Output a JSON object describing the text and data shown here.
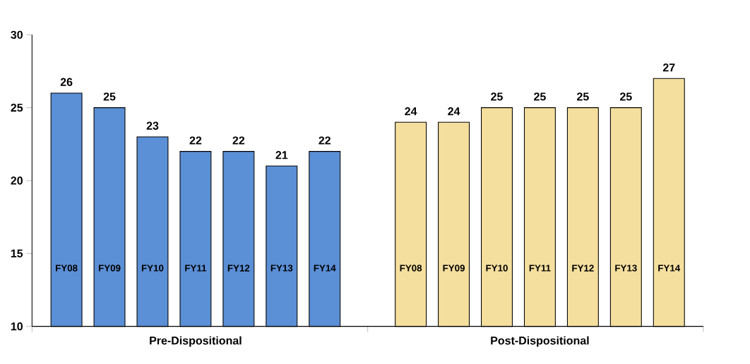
{
  "chart_data": {
    "type": "bar",
    "categories": [
      "FY08",
      "FY09",
      "FY10",
      "FY11",
      "FY12",
      "FY13",
      "FY14",
      "FY08",
      "FY09",
      "FY10",
      "FY11",
      "FY12",
      "FY13",
      "FY14"
    ],
    "series": [
      {
        "name": "Pre-Dispositional",
        "color": "#5b8fd6",
        "values": [
          26,
          25,
          23,
          22,
          22,
          21,
          22,
          null,
          null,
          null,
          null,
          null,
          null,
          null
        ]
      },
      {
        "name": "Post-Dispositional",
        "color": "#f5df9e",
        "values": [
          null,
          null,
          null,
          null,
          null,
          null,
          null,
          24,
          24,
          25,
          25,
          25,
          25,
          27
        ]
      }
    ],
    "ylim": [
      10,
      30
    ],
    "yticks": [
      10,
      15,
      20,
      25,
      30
    ],
    "grid": false,
    "legend": false,
    "data_labels": true
  }
}
